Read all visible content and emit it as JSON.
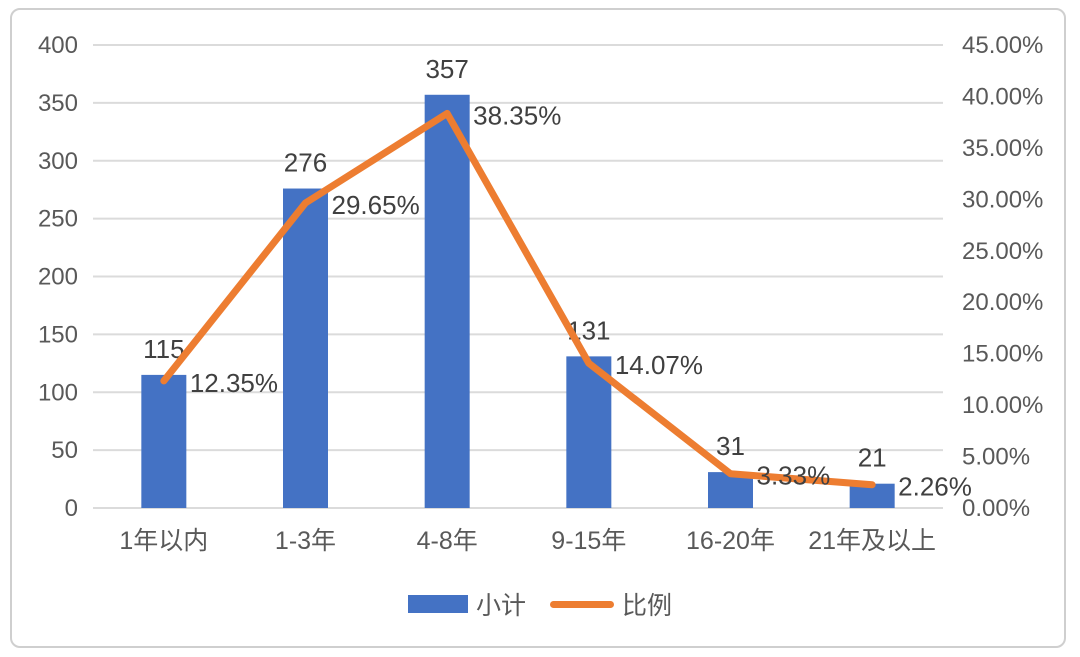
{
  "chart_data": {
    "type": "bar",
    "subtype": "bar-line-combo",
    "title": "",
    "categories": [
      "1年以内",
      "1-3年",
      "4-8年",
      "9-15年",
      "16-20年",
      "21年及以上"
    ],
    "series": [
      {
        "name": "小计",
        "type": "bar",
        "axis": "left",
        "color": "#4472C4",
        "values": [
          115,
          276,
          357,
          131,
          31,
          21
        ],
        "labels": [
          "115",
          "276",
          "357",
          "131",
          "31",
          "21"
        ]
      },
      {
        "name": "比例",
        "type": "line",
        "axis": "right",
        "color": "#ED7D31",
        "values": [
          12.35,
          29.65,
          38.35,
          14.07,
          3.33,
          2.26
        ],
        "labels": [
          "12.35%",
          "29.65%",
          "38.35%",
          "14.07%",
          "3.33%",
          "2.26%"
        ]
      }
    ],
    "left_axis": {
      "min": 0,
      "max": 400,
      "step": 50,
      "ticks": [
        "0",
        "50",
        "100",
        "150",
        "200",
        "250",
        "300",
        "350",
        "400"
      ]
    },
    "right_axis": {
      "min": 0,
      "max": 45,
      "step": 5,
      "ticks": [
        "0.00%",
        "5.00%",
        "10.00%",
        "15.00%",
        "20.00%",
        "25.00%",
        "30.00%",
        "35.00%",
        "40.00%",
        "45.00%"
      ]
    },
    "grid": true,
    "legend_position": "bottom"
  },
  "colors": {
    "bar": "#4472C4",
    "line": "#ED7D31",
    "grid": "#DBDBDB",
    "axis_text": "#595959",
    "label_text": "#404040",
    "card_border": "#CFCFCF",
    "background": "#FFFFFF"
  }
}
